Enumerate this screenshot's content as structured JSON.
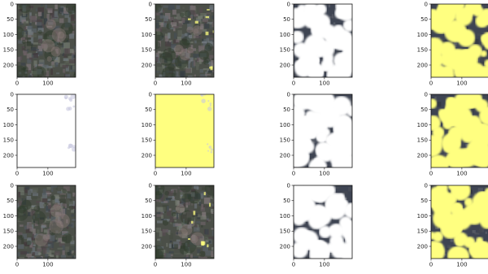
{
  "chart_data": {
    "type": "image-grid",
    "rows": 3,
    "cols": 4,
    "image_shape": {
      "height": 240,
      "width": 190
    },
    "x_ticks": [
      0,
      100
    ],
    "y_ticks": [
      0,
      50,
      100,
      150,
      200
    ],
    "x_tick_labels": [
      "0",
      "100"
    ],
    "y_tick_labels": [
      "0",
      "50",
      "100",
      "150",
      "200"
    ],
    "overlay_color": "#ffff80",
    "panels": [
      {
        "row": 0,
        "col": 0,
        "kind": "satellite",
        "overlay_fraction": 0.0,
        "seed": 11
      },
      {
        "row": 0,
        "col": 1,
        "kind": "satellite",
        "overlay_fraction": 0.03,
        "seed": 12
      },
      {
        "row": 0,
        "col": 2,
        "kind": "cloud-mask",
        "cloud_fraction": 0.55,
        "seed": 13
      },
      {
        "row": 0,
        "col": 3,
        "kind": "cloud-mask-yellow",
        "cloud_fraction": 0.55,
        "seed": 14
      },
      {
        "row": 1,
        "col": 0,
        "kind": "blank-white",
        "seed": 21
      },
      {
        "row": 1,
        "col": 1,
        "kind": "blank-yellow",
        "seed": 22
      },
      {
        "row": 1,
        "col": 2,
        "kind": "cloud-mask",
        "cloud_fraction": 0.6,
        "seed": 23
      },
      {
        "row": 1,
        "col": 3,
        "kind": "cloud-mask-yellow",
        "cloud_fraction": 0.6,
        "seed": 24
      },
      {
        "row": 2,
        "col": 0,
        "kind": "satellite",
        "overlay_fraction": 0.0,
        "seed": 31
      },
      {
        "row": 2,
        "col": 1,
        "kind": "satellite",
        "overlay_fraction": 0.04,
        "seed": 32
      },
      {
        "row": 2,
        "col": 2,
        "kind": "cloud-mask",
        "cloud_fraction": 0.5,
        "seed": 33
      },
      {
        "row": 2,
        "col": 3,
        "kind": "cloud-mask-yellow",
        "cloud_fraction": 0.5,
        "seed": 34
      }
    ]
  }
}
